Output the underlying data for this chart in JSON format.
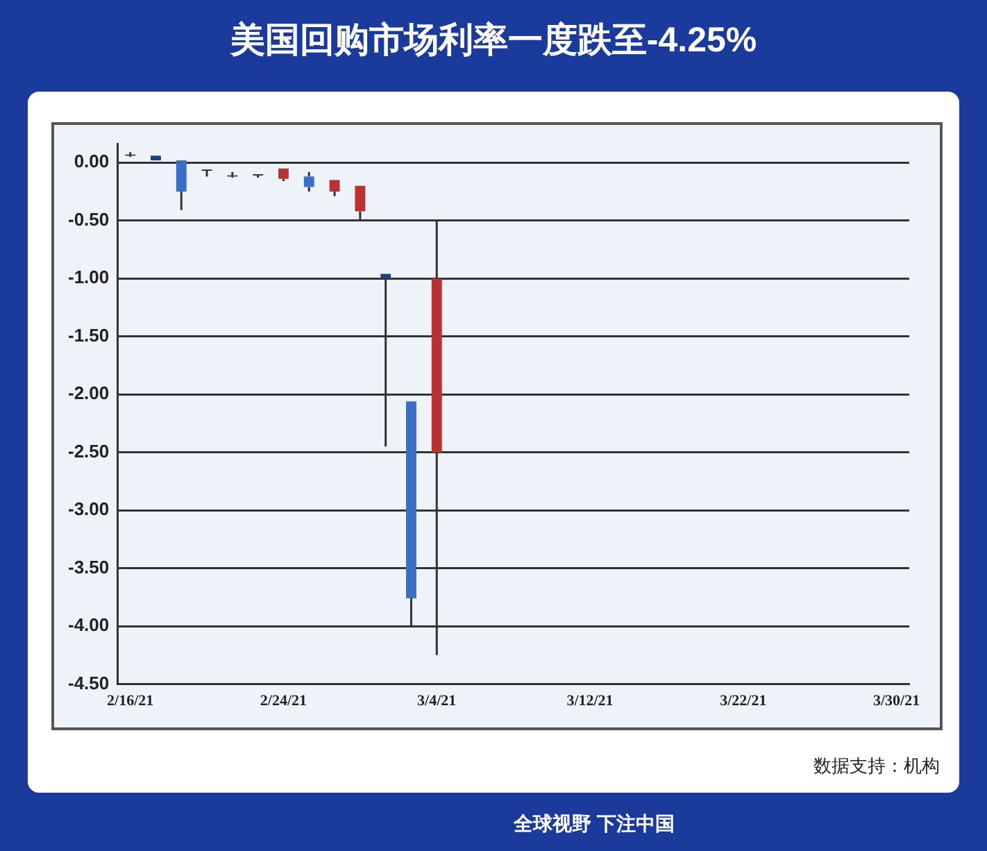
{
  "chart_data": {
    "type": "candlestick",
    "title": "美国回购市场利率一度跌至-4.25%",
    "categories": [
      "2/16/21",
      null,
      null,
      null,
      null,
      null,
      "2/24/21",
      null,
      null,
      null,
      null,
      null,
      "3/4/21",
      null,
      null,
      null,
      null,
      null,
      "3/12/21",
      null,
      null,
      null,
      null,
      null,
      "3/22/21",
      null,
      null,
      null,
      null,
      null,
      "3/30/21"
    ],
    "ohlc": [
      [
        0.07,
        0.09,
        0.05,
        0.06
      ],
      [
        0.06,
        0.06,
        0.02,
        0.02
      ],
      [
        0.02,
        0.02,
        -0.41,
        -0.25
      ],
      [
        -0.06,
        -0.06,
        -0.12,
        -0.07
      ],
      [
        -0.11,
        -0.08,
        -0.13,
        -0.12
      ],
      [
        -0.1,
        -0.1,
        -0.13,
        -0.11
      ],
      [
        -0.14,
        -0.05,
        -0.16,
        -0.05
      ],
      [
        -0.12,
        -0.08,
        -0.25,
        -0.21
      ],
      [
        -0.25,
        -0.15,
        -0.29,
        -0.15
      ],
      [
        -0.42,
        -0.2,
        -0.49,
        -0.2
      ],
      [
        -0.96,
        -0.96,
        -2.45,
        -1.0
      ],
      [
        -2.06,
        -2.06,
        -4.0,
        -3.76
      ],
      [
        -2.5,
        -0.5,
        -4.25,
        -1.0
      ],
      null,
      null,
      null,
      null,
      null,
      null,
      null,
      null,
      null,
      null,
      null,
      null,
      null,
      null,
      null,
      null,
      null,
      null
    ],
    "colors": [
      "#222222",
      "#1f3f80",
      "#3a6fc4",
      "#222222",
      "#222222",
      "#222222",
      "#b83232",
      "#3a6fc4",
      "#b83232",
      "#b83232",
      "#1f3f80",
      "#3a6fc4",
      "#b83232",
      null,
      null,
      null,
      null,
      null,
      null,
      null,
      null,
      null,
      null,
      null,
      null,
      null,
      null,
      null,
      null,
      null,
      null
    ],
    "ylim": [
      -4.5,
      0.16
    ],
    "yticks": [
      {
        "value": 0,
        "label": "0.00"
      },
      {
        "value": -0.5,
        "label": "-0.50"
      },
      {
        "value": -1,
        "label": "-1.00"
      },
      {
        "value": -1.5,
        "label": "-1.50"
      },
      {
        "value": -2,
        "label": "-2.00"
      },
      {
        "value": -2.5,
        "label": "-2.50"
      },
      {
        "value": -3,
        "label": "-3.00"
      },
      {
        "value": -3.5,
        "label": "-3.50"
      },
      {
        "value": -4,
        "label": "-4.00"
      },
      {
        "value": -4.5,
        "label": "-4.50"
      }
    ],
    "grid": "y",
    "annotations": [
      "数据支持：机构",
      "全球视野 下注中国"
    ]
  }
}
